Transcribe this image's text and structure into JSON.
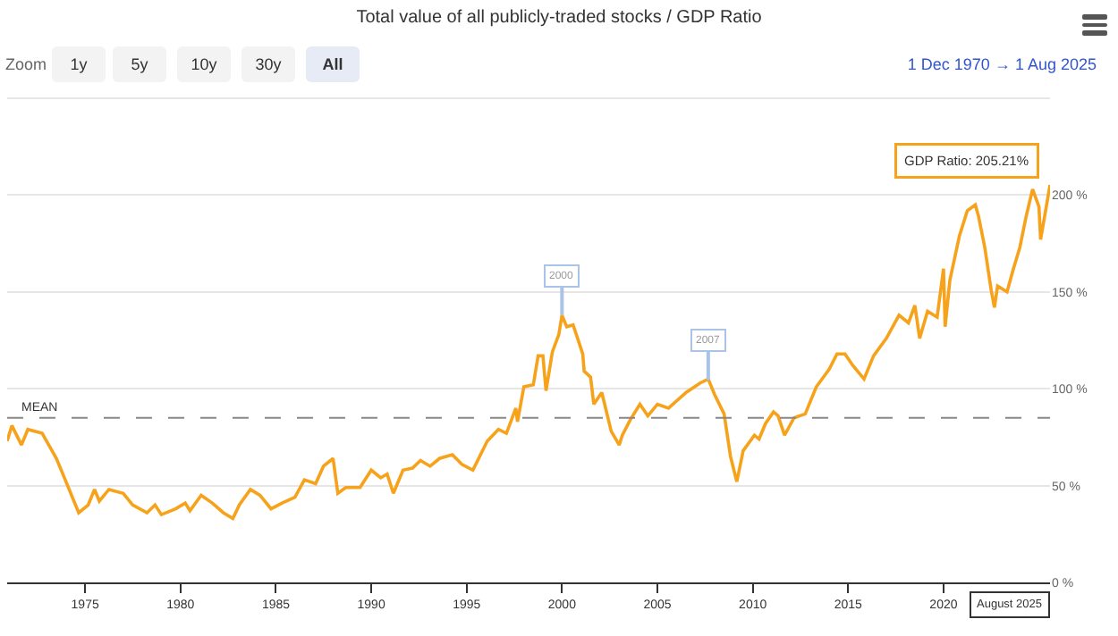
{
  "chart_data": {
    "type": "line",
    "title": "Total value of all publicly-traded stocks / GDP Ratio",
    "x": [
      "1970-12",
      "1971-03",
      "1971-09",
      "1972-01",
      "1972-10",
      "1973-07",
      "1973-11",
      "1974-09",
      "1975-03",
      "1975-07",
      "1975-10",
      "1976-04",
      "1977-01",
      "1977-07",
      "1978-04",
      "1978-09",
      "1979-01",
      "1979-10",
      "1980-04",
      "1980-07",
      "1981-02",
      "1981-09",
      "1982-04",
      "1982-10",
      "1983-02",
      "1983-09",
      "1984-03",
      "1984-10",
      "1985-05",
      "1986-01",
      "1986-07",
      "1987-02",
      "1987-07",
      "1988-01",
      "1988-04",
      "1988-09",
      "1989-06",
      "1990-01",
      "1990-07",
      "1990-11",
      "1991-03",
      "1991-09",
      "1992-03",
      "1992-08",
      "1993-02",
      "1993-08",
      "1994-04",
      "1994-10",
      "1995-05",
      "1996-02",
      "1996-09",
      "1997-02",
      "1997-08",
      "1997-09",
      "1998-01",
      "1998-07",
      "1998-10",
      "1999-01",
      "1999-03",
      "1999-07",
      "1999-11",
      "2000-01",
      "2000-04",
      "2000-08",
      "2001-02",
      "2001-03",
      "2001-07",
      "2001-09",
      "2002-02",
      "2002-08",
      "2003-01",
      "2003-03",
      "2003-08",
      "2004-02",
      "2004-07",
      "2005-01",
      "2005-08",
      "2006-07",
      "2007-04",
      "2007-09",
      "2008-01",
      "2008-07",
      "2008-11",
      "2009-03",
      "2009-07",
      "2010-02",
      "2010-05",
      "2010-09",
      "2011-02",
      "2011-05",
      "2011-09",
      "2012-03",
      "2012-10",
      "2013-05",
      "2014-01",
      "2014-06",
      "2014-11",
      "2015-04",
      "2015-11",
      "2016-05",
      "2017-01",
      "2017-09",
      "2018-03",
      "2018-07",
      "2018-10",
      "2019-03",
      "2019-09",
      "2020-01",
      "2020-02",
      "2020-05",
      "2020-11",
      "2021-04",
      "2021-09",
      "2021-11",
      "2022-03",
      "2022-07",
      "2022-09",
      "2022-11",
      "2023-05",
      "2023-09",
      "2024-01",
      "2024-05",
      "2024-09",
      "2025-01",
      "2025-02",
      "2025-08"
    ],
    "series": [
      {
        "color": "#f7a21b",
        "values": [
          73,
          81,
          71,
          79,
          77,
          64,
          56,
          36,
          40,
          48,
          42,
          48,
          46,
          40,
          36,
          40,
          35,
          38,
          41,
          37,
          45,
          41,
          36,
          33,
          40,
          48,
          45,
          38,
          41,
          44,
          53,
          51,
          60,
          64,
          46,
          49,
          49,
          58,
          54,
          56,
          46,
          58,
          59,
          63,
          60,
          64,
          66,
          61,
          58,
          73,
          79,
          77,
          90,
          83,
          101,
          102,
          117,
          117,
          99,
          119,
          128,
          138,
          132,
          133,
          118,
          109,
          106,
          92,
          98,
          78,
          71,
          76,
          84,
          92,
          86,
          92,
          90,
          98,
          103,
          105,
          97,
          87,
          65,
          52,
          68,
          76,
          74,
          82,
          88,
          86,
          76,
          85,
          87,
          101,
          110,
          118,
          118,
          112,
          105,
          117,
          126,
          138,
          134,
          143,
          126,
          140,
          137,
          162,
          132,
          156,
          179,
          192,
          195,
          189,
          173,
          151,
          142,
          153,
          150,
          162,
          173,
          189,
          203,
          194,
          177,
          205.21
        ]
      }
    ],
    "xlim": [
      "1970-12",
      "2025-08"
    ],
    "xticks": [
      "1975",
      "1980",
      "1985",
      "1990",
      "1995",
      "2000",
      "2005",
      "2010",
      "2015",
      "2020"
    ],
    "ylim": [
      0,
      250
    ],
    "yticks": [
      {
        "value": 0,
        "label": "0 %"
      },
      {
        "value": 50,
        "label": "50 %"
      },
      {
        "value": 100,
        "label": "100 %"
      },
      {
        "value": 150,
        "label": "150 %"
      },
      {
        "value": 200,
        "label": "200 %"
      }
    ],
    "grid": "y",
    "marker": "none",
    "line_style": "solid",
    "ref_lines": [
      {
        "axis": "y",
        "value": 85,
        "label": "MEAN",
        "color": "#888888",
        "line_style": "dashed"
      }
    ],
    "annotations": [
      "Zoom",
      "1y",
      "5y",
      "10y",
      "30y",
      "All",
      "1 Dec 1970 → 1 Aug 2025",
      {
        "text": "2000",
        "x": "2000-01",
        "y": 138
      },
      {
        "text": "2007",
        "x": "2007-09",
        "y": 104.5
      },
      {
        "text": "GDP Ratio: 205.21%",
        "x": "2025-08",
        "y": 205.21
      },
      "August 2025"
    ]
  }
}
